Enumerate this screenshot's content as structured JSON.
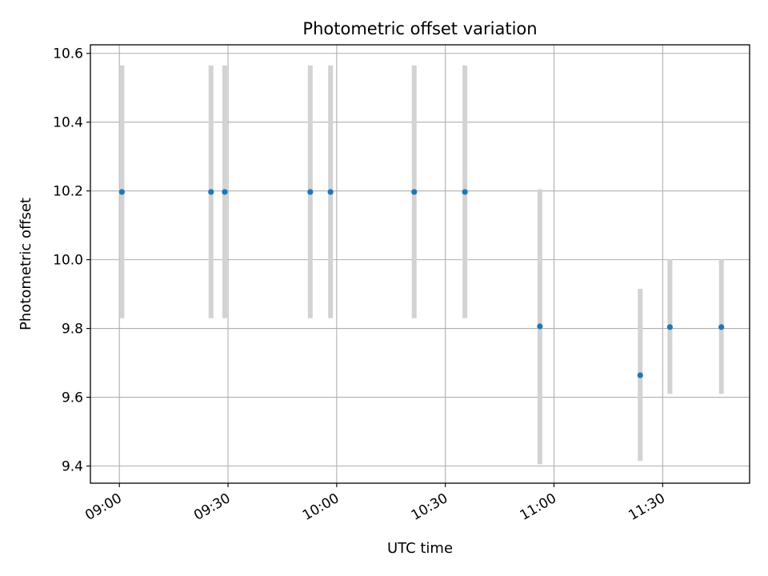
{
  "chart_data": {
    "type": "scatter",
    "title": "Photometric offset variation",
    "xlabel": "UTC time",
    "ylabel": "Photometric offset",
    "x_ticks": [
      "09:00",
      "09:30",
      "10:00",
      "10:30",
      "11:00",
      "11:30"
    ],
    "x_tick_minutes": [
      540,
      570,
      600,
      630,
      660,
      690
    ],
    "xlim_minutes": [
      532,
      714
    ],
    "y_ticks": [
      "9.4",
      "9.6",
      "9.8",
      "10.0",
      "10.2",
      "10.4",
      "10.6"
    ],
    "y_tick_values": [
      9.4,
      9.6,
      9.8,
      10.0,
      10.2,
      10.4,
      10.6
    ],
    "ylim": [
      9.35,
      10.625
    ],
    "grid": true,
    "colors": {
      "point": "#1f77b4",
      "error_bar": "#d3d3d3",
      "grid": "#b0b0b0"
    },
    "points": [
      {
        "time": "09:01",
        "minutes": 540.7,
        "y": 10.197,
        "yerr_low": 9.83,
        "yerr_high": 10.565
      },
      {
        "time": "09:25",
        "minutes": 565.3,
        "y": 10.197,
        "yerr_low": 9.83,
        "yerr_high": 10.565
      },
      {
        "time": "09:29",
        "minutes": 569.1,
        "y": 10.197,
        "yerr_low": 9.83,
        "yerr_high": 10.565
      },
      {
        "time": "09:53",
        "minutes": 592.7,
        "y": 10.197,
        "yerr_low": 9.83,
        "yerr_high": 10.565
      },
      {
        "time": "09:58",
        "minutes": 598.3,
        "y": 10.197,
        "yerr_low": 9.83,
        "yerr_high": 10.565
      },
      {
        "time": "10:21",
        "minutes": 621.4,
        "y": 10.197,
        "yerr_low": 9.83,
        "yerr_high": 10.565
      },
      {
        "time": "10:35",
        "minutes": 635.4,
        "y": 10.197,
        "yerr_low": 9.83,
        "yerr_high": 10.565
      },
      {
        "time": "10:56",
        "minutes": 656.1,
        "y": 9.806,
        "yerr_low": 9.405,
        "yerr_high": 10.205
      },
      {
        "time": "11:24",
        "minutes": 683.8,
        "y": 9.664,
        "yerr_low": 9.415,
        "yerr_high": 9.915
      },
      {
        "time": "11:32",
        "minutes": 692.0,
        "y": 9.804,
        "yerr_low": 9.61,
        "yerr_high": 10.0
      },
      {
        "time": "11:46",
        "minutes": 706.2,
        "y": 9.804,
        "yerr_low": 9.61,
        "yerr_high": 10.0
      }
    ]
  }
}
